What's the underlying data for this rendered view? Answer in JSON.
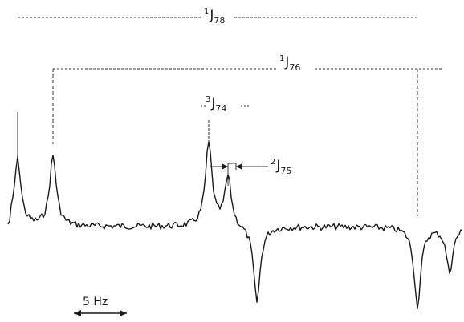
{
  "chart_data": {
    "type": "line",
    "title": "",
    "xlabel": "",
    "ylabel": "",
    "grid": false,
    "couplings": [
      {
        "id": "J78",
        "sup": "1",
        "main": "J",
        "sub": "78"
      },
      {
        "id": "J76",
        "sup": "1",
        "main": "J",
        "sub": "76"
      },
      {
        "id": "J74",
        "sup": "3",
        "main": "J",
        "sub": "74"
      },
      {
        "id": "J75",
        "sup": "2",
        "main": "J",
        "sub": "75"
      }
    ],
    "scale_bar": {
      "label": "5 Hz",
      "length_hz": 5
    },
    "peaks": [
      {
        "x": 22,
        "y": 0.74
      },
      {
        "x": 66,
        "y": 0.78
      },
      {
        "x": 260,
        "y": 0.92
      },
      {
        "x": 284,
        "y": 0.55
      },
      {
        "x": 320,
        "y": -0.95
      },
      {
        "x": 520,
        "y": -0.98
      },
      {
        "x": 560,
        "y": -0.55
      }
    ]
  }
}
